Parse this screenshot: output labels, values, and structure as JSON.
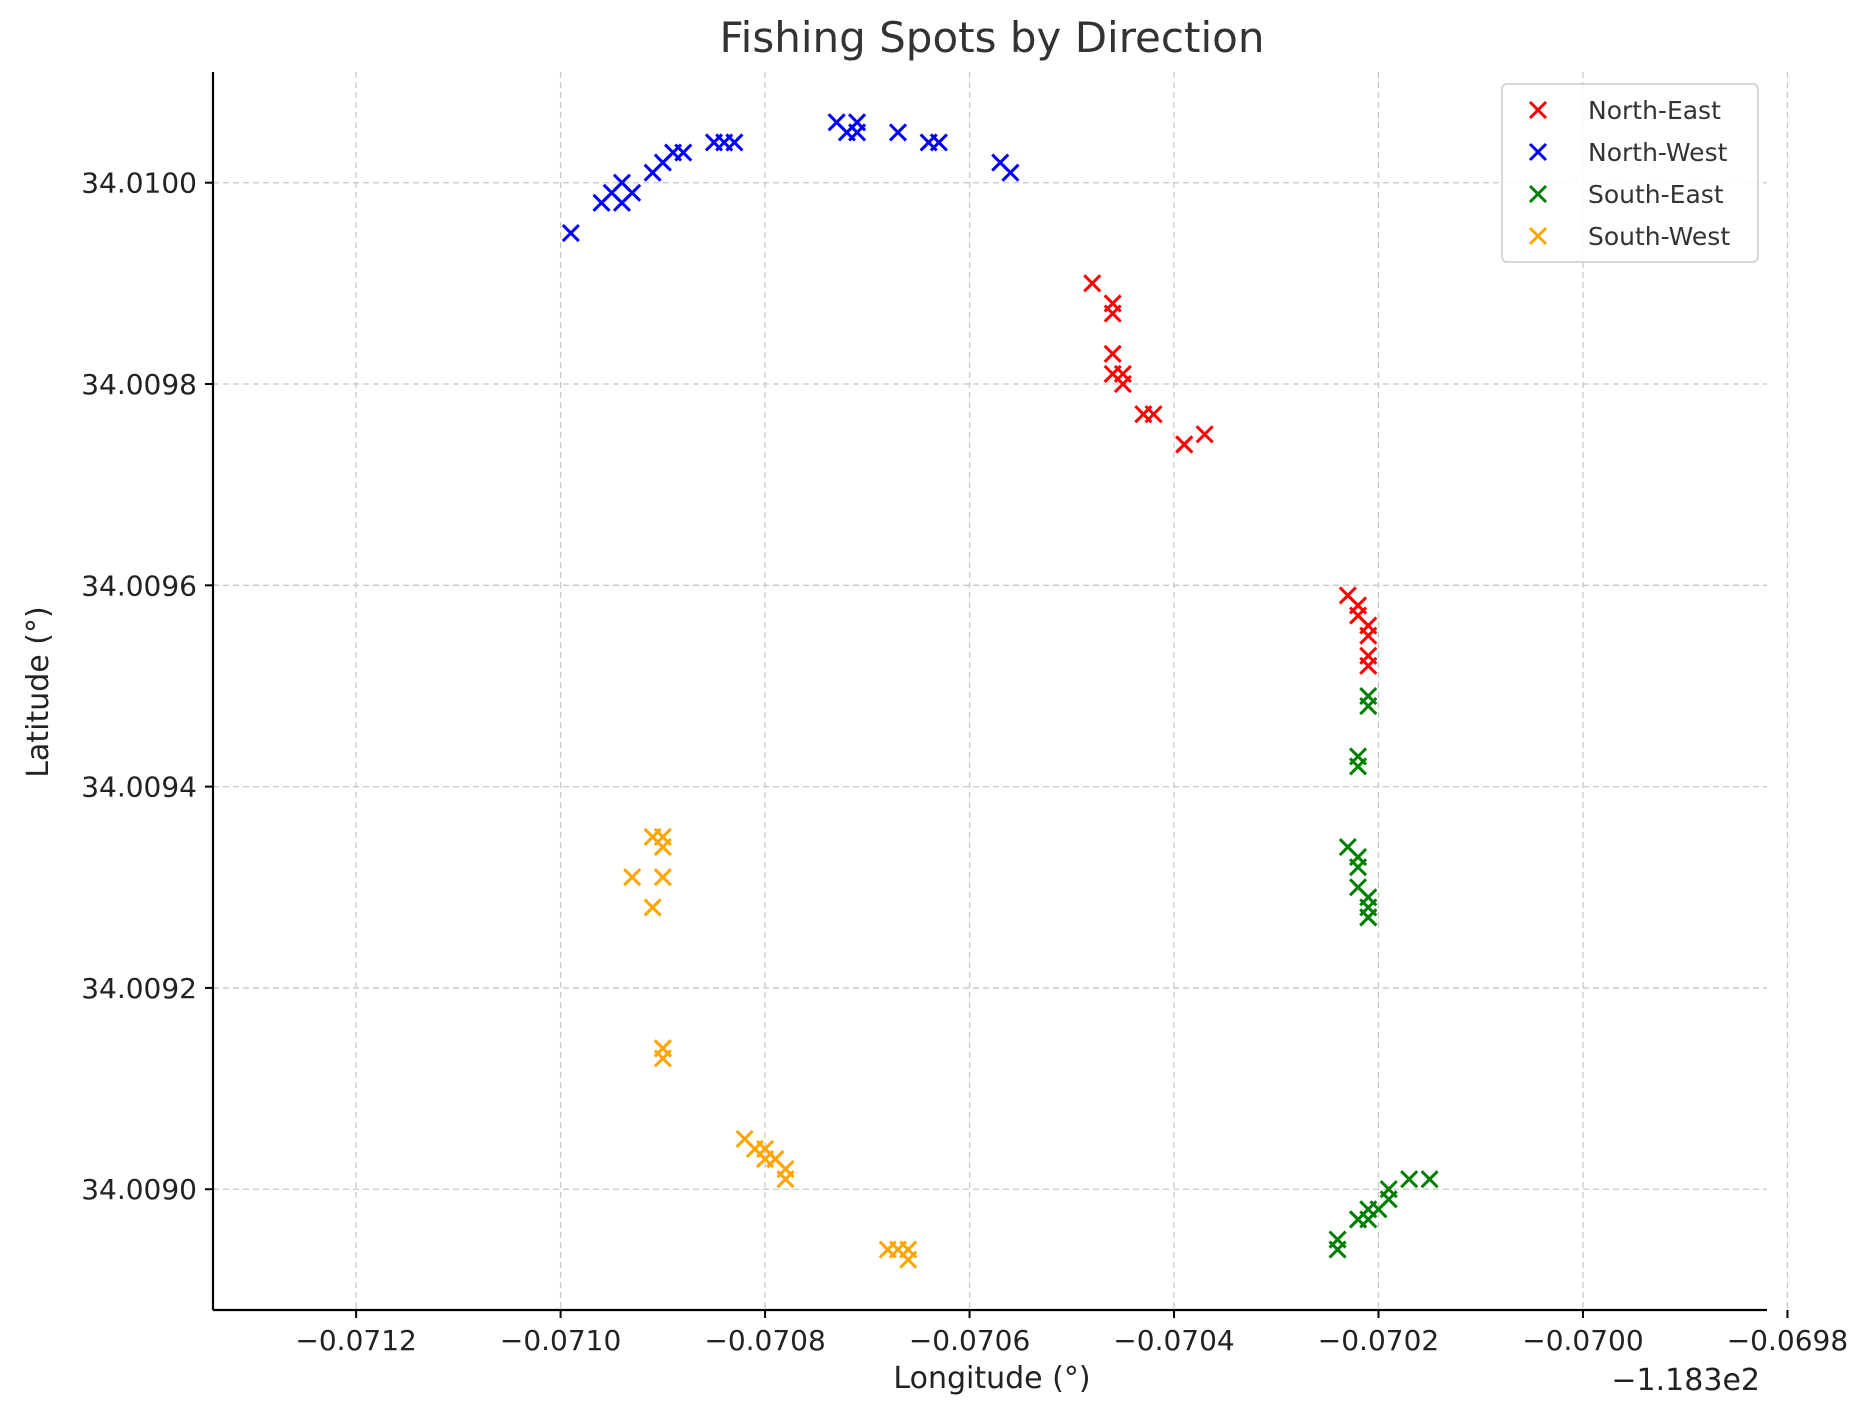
{
  "chart_data": {
    "type": "scatter",
    "title": "Fishing Spots by Direction",
    "xlabel": "Longitude (°)",
    "ylabel": "Latitude (°)",
    "x_offset_label": "−1.183e2",
    "xlim": [
      -0.07134,
      -0.06982
    ],
    "ylim": [
      34.00888,
      34.01011
    ],
    "x_ticks": [
      -0.0712,
      -0.071,
      -0.0708,
      -0.0706,
      -0.0704,
      -0.0702,
      -0.07,
      -0.0698
    ],
    "x_tick_labels": [
      "−0.0712",
      "−0.0710",
      "−0.0708",
      "−0.0706",
      "−0.0704",
      "−0.0702",
      "−0.0700",
      "−0.0698"
    ],
    "y_ticks": [
      34.009,
      34.0092,
      34.0094,
      34.0096,
      34.0098,
      34.01
    ],
    "y_tick_labels": [
      "34.0090",
      "34.0092",
      "34.0094",
      "34.0096",
      "34.0098",
      "34.0100"
    ],
    "grid": true,
    "legend_position": "top-right",
    "marker": "x",
    "series": [
      {
        "name": "North-East",
        "color": "#ff0000",
        "points": [
          [
            -0.07048,
            34.0099
          ],
          [
            -0.07046,
            34.00988
          ],
          [
            -0.07046,
            34.00987
          ],
          [
            -0.07046,
            34.00983
          ],
          [
            -0.07046,
            34.00981
          ],
          [
            -0.07045,
            34.00981
          ],
          [
            -0.07045,
            34.0098
          ],
          [
            -0.07043,
            34.00977
          ],
          [
            -0.07042,
            34.00977
          ],
          [
            -0.07039,
            34.00974
          ],
          [
            -0.07039,
            34.00974
          ],
          [
            -0.07037,
            34.00975
          ],
          [
            -0.07023,
            34.00959
          ],
          [
            -0.07022,
            34.00958
          ],
          [
            -0.07022,
            34.00957
          ],
          [
            -0.07021,
            34.00955
          ],
          [
            -0.07021,
            34.00956
          ],
          [
            -0.07021,
            34.00953
          ],
          [
            -0.07021,
            34.00952
          ]
        ]
      },
      {
        "name": "North-West",
        "color": "#0000ff",
        "points": [
          [
            -0.07099,
            34.00995
          ],
          [
            -0.07096,
            34.00998
          ],
          [
            -0.07095,
            34.00999
          ],
          [
            -0.07094,
            34.00998
          ],
          [
            -0.07094,
            34.01
          ],
          [
            -0.07093,
            34.00999
          ],
          [
            -0.07091,
            34.01001
          ],
          [
            -0.0709,
            34.01002
          ],
          [
            -0.07089,
            34.01003
          ],
          [
            -0.07088,
            34.01003
          ],
          [
            -0.07085,
            34.01004
          ],
          [
            -0.07084,
            34.01004
          ],
          [
            -0.07083,
            34.01004
          ],
          [
            -0.07073,
            34.01006
          ],
          [
            -0.07072,
            34.01005
          ],
          [
            -0.07071,
            34.01006
          ],
          [
            -0.07071,
            34.01005
          ],
          [
            -0.07067,
            34.01005
          ],
          [
            -0.07064,
            34.01004
          ],
          [
            -0.07063,
            34.01004
          ],
          [
            -0.07057,
            34.01002
          ],
          [
            -0.07056,
            34.01001
          ]
        ]
      },
      {
        "name": "South-East",
        "color": "#008000",
        "points": [
          [
            -0.07021,
            34.00949
          ],
          [
            -0.07021,
            34.00948
          ],
          [
            -0.07022,
            34.00943
          ],
          [
            -0.07022,
            34.00942
          ],
          [
            -0.07023,
            34.00934
          ],
          [
            -0.07022,
            34.00933
          ],
          [
            -0.07022,
            34.00932
          ],
          [
            -0.07022,
            34.0093
          ],
          [
            -0.07021,
            34.00929
          ],
          [
            -0.07021,
            34.00928
          ],
          [
            -0.07021,
            34.00927
          ],
          [
            -0.07021,
            34.00927
          ],
          [
            -0.07024,
            34.00894
          ],
          [
            -0.07024,
            34.00895
          ],
          [
            -0.07022,
            34.00897
          ],
          [
            -0.07022,
            34.00897
          ],
          [
            -0.07021,
            34.00898
          ],
          [
            -0.07021,
            34.00897
          ],
          [
            -0.0702,
            34.00898
          ],
          [
            -0.07019,
            34.009
          ],
          [
            -0.07019,
            34.00899
          ],
          [
            -0.07017,
            34.00901
          ],
          [
            -0.07015,
            34.00901
          ]
        ]
      },
      {
        "name": "South-West",
        "color": "#ffa500",
        "points": [
          [
            -0.07091,
            34.00935
          ],
          [
            -0.0709,
            34.00935
          ],
          [
            -0.0709,
            34.00934
          ],
          [
            -0.07093,
            34.00931
          ],
          [
            -0.0709,
            34.00931
          ],
          [
            -0.07091,
            34.00928
          ],
          [
            -0.0709,
            34.00914
          ],
          [
            -0.0709,
            34.00914
          ],
          [
            -0.0709,
            34.00913
          ],
          [
            -0.07082,
            34.00905
          ],
          [
            -0.07081,
            34.00904
          ],
          [
            -0.0708,
            34.00903
          ],
          [
            -0.0708,
            34.00904
          ],
          [
            -0.07079,
            34.00903
          ],
          [
            -0.07079,
            34.00903
          ],
          [
            -0.07078,
            34.00902
          ],
          [
            -0.07078,
            34.00901
          ],
          [
            -0.07068,
            34.00894
          ],
          [
            -0.07067,
            34.00894
          ],
          [
            -0.07066,
            34.00894
          ],
          [
            -0.07066,
            34.00893
          ]
        ]
      }
    ]
  }
}
